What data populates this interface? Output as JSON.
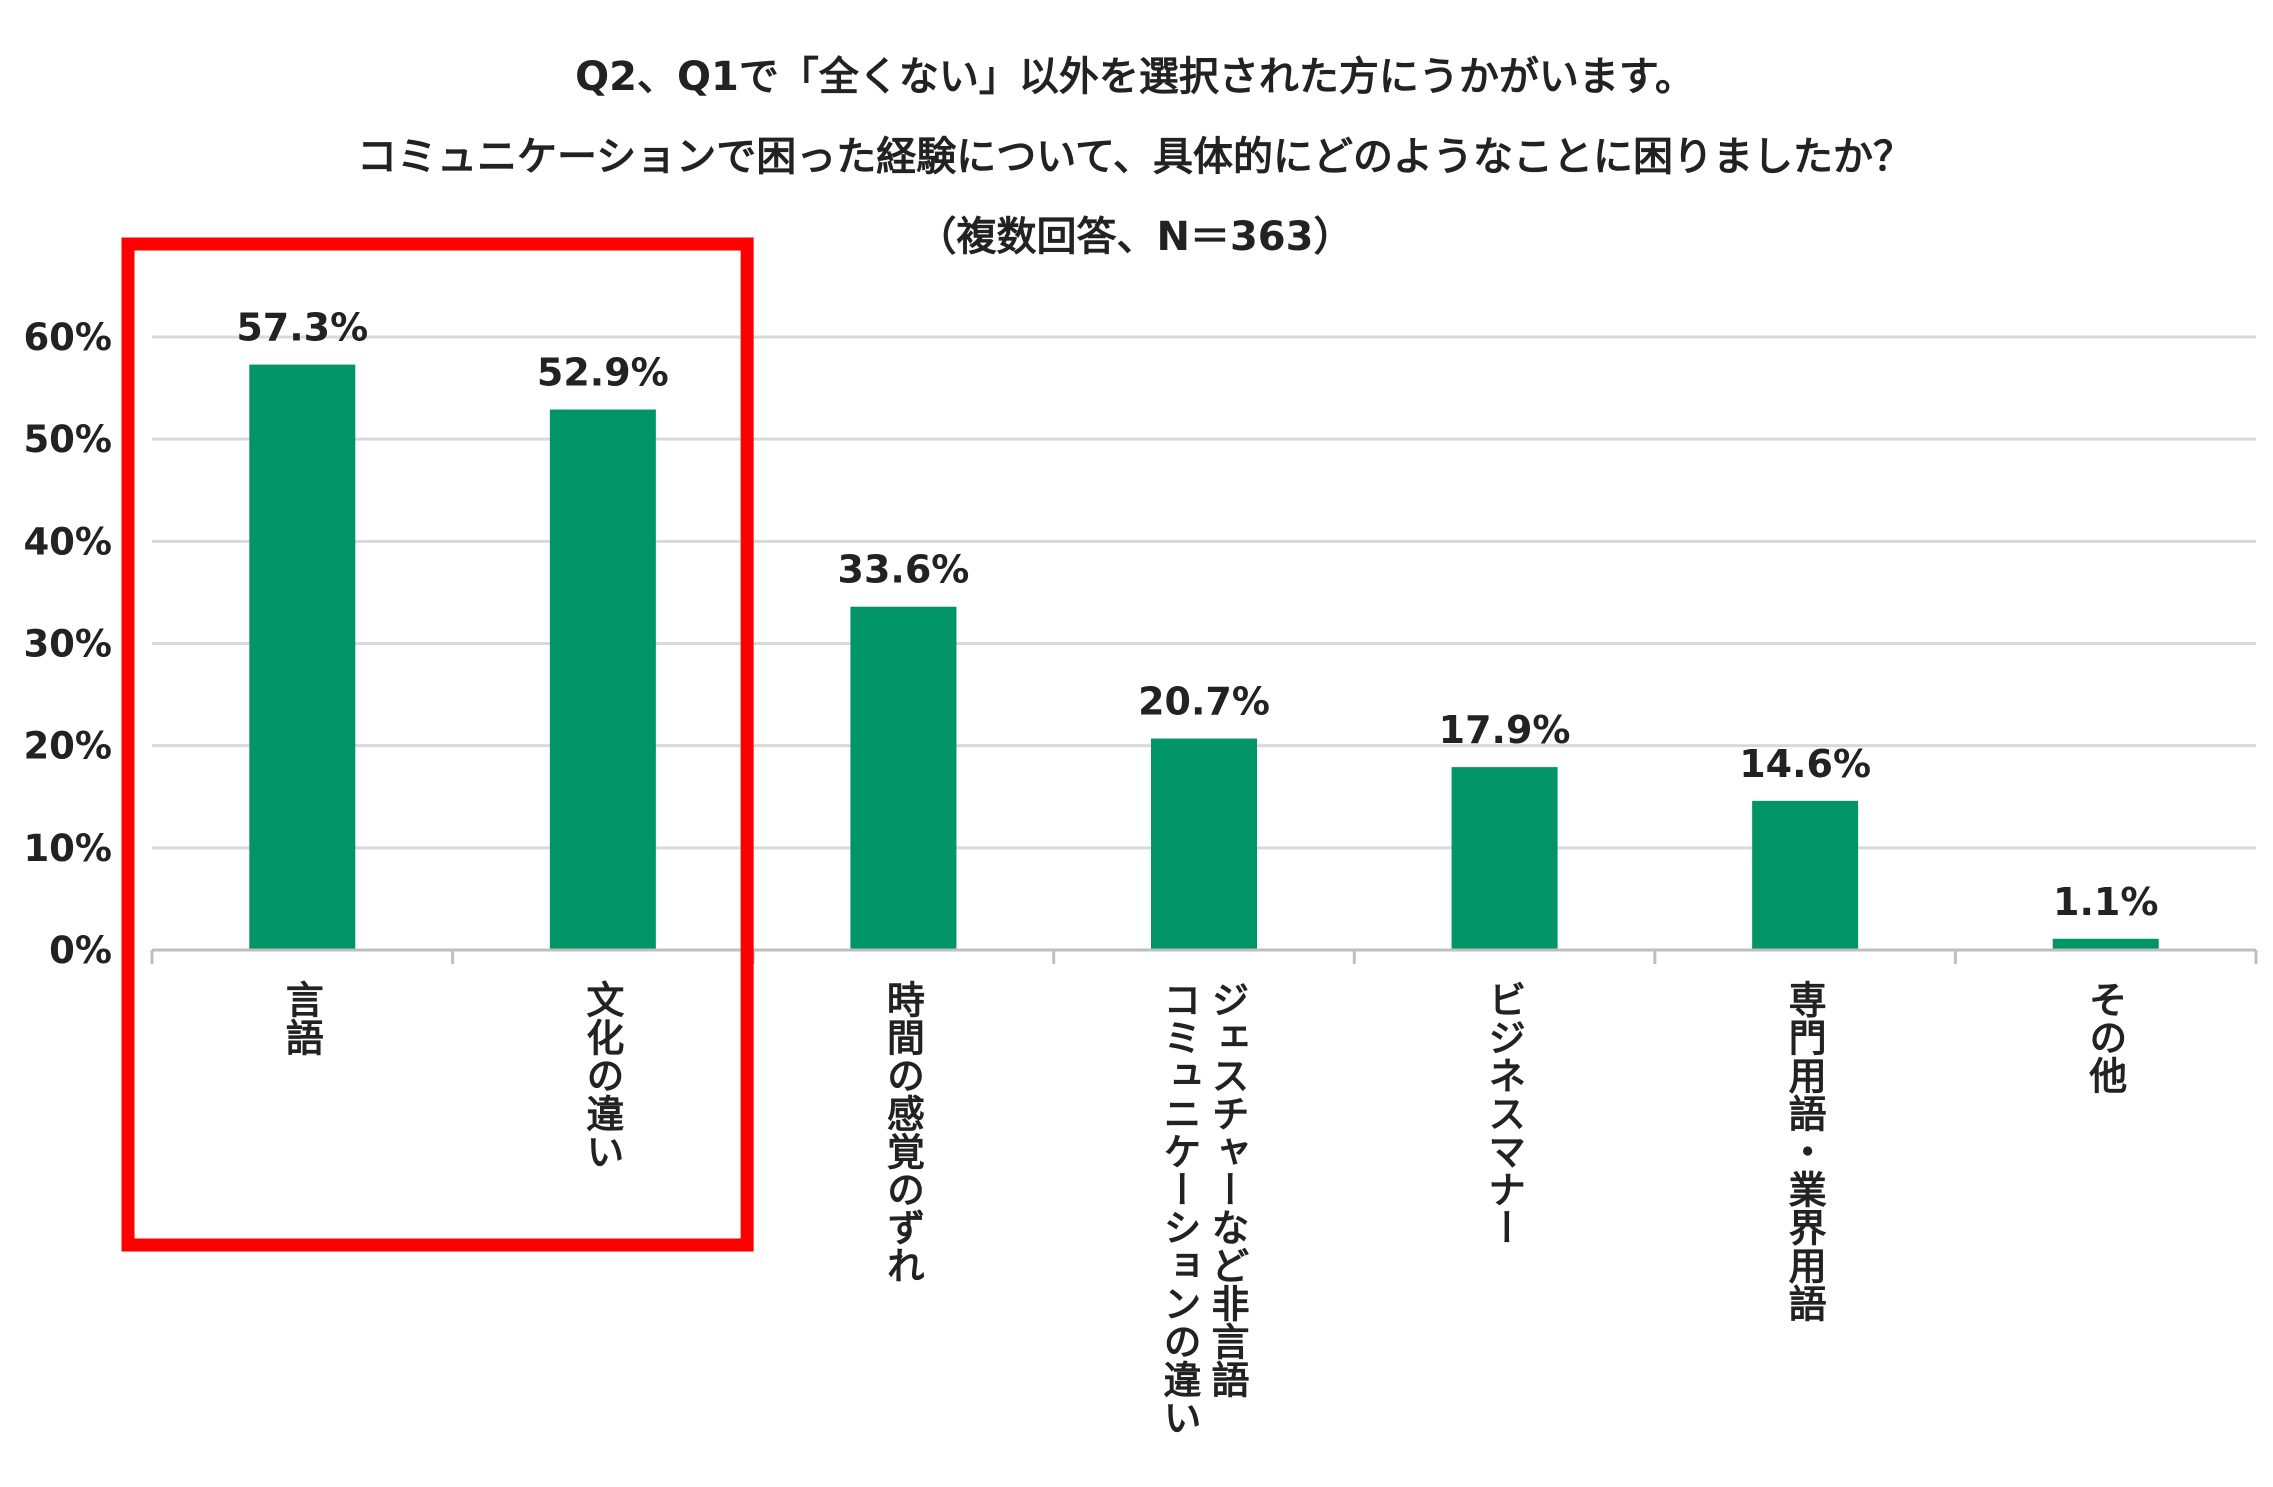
{
  "title_lines": [
    "Q2、Q1で「全くない」以外を選択された方にうかがいます。",
    "コミュニケーションで困った経験について、具体的にどのようなことに困りましたか？",
    "（複数回答、N＝363）"
  ],
  "chart_data": {
    "type": "bar",
    "categories": [
      [
        "言語"
      ],
      [
        "文化の違い"
      ],
      [
        "時間の感覚のずれ"
      ],
      [
        "ジェスチャーなど非言語",
        "コミュニケーションの違い"
      ],
      [
        "ビジネスマナー"
      ],
      [
        "専門用語・業界用語"
      ],
      [
        "その他"
      ]
    ],
    "values": [
      57.3,
      52.9,
      33.6,
      20.7,
      17.9,
      14.6,
      1.1
    ],
    "value_labels": [
      "57.3%",
      "52.9%",
      "33.6%",
      "20.7%",
      "17.9%",
      "14.6%",
      "1.1%"
    ],
    "yticks": [
      "0%",
      "10%",
      "20%",
      "30%",
      "40%",
      "50%",
      "60%"
    ],
    "ylim": [
      0,
      60
    ],
    "grid": true,
    "highlight": {
      "categories": [
        0,
        1
      ],
      "color": "#ff0000"
    },
    "colors": {
      "bar": "#009467",
      "grid": "#d9d9d9",
      "axis": "#bfbfbf"
    }
  }
}
